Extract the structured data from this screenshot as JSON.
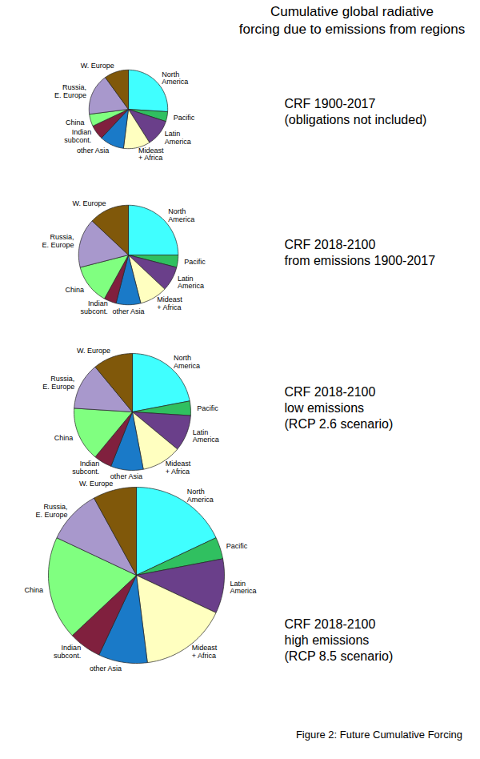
{
  "title": "Cumulative global radiative\nforcing due to emissions from regions",
  "caption": "Figure 2: Future Cumulative Forcing",
  "chart_data": [
    {
      "type": "pie",
      "title": "CRF 1900-2017\n(obligations not included)",
      "categories": [
        "North\nAmerica",
        "Pacific",
        "Latin\nAmerica",
        "Mideast\n+ Africa",
        "other Asia",
        "Indian\nsubcont.",
        "China",
        "Russia,\nE. Europe",
        "W. Europe"
      ],
      "values": [
        26,
        4,
        11,
        11,
        10,
        6,
        5,
        17,
        10
      ],
      "colors": [
        "#40ffff",
        "#30c060",
        "#6a3f8a",
        "#ffffc0",
        "#1a7ac8",
        "#80203e",
        "#80ff80",
        "#a898cc",
        "#80580a"
      ]
    },
    {
      "type": "pie",
      "title": "CRF 2018-2100\nfrom emissions 1900-2017",
      "categories": [
        "North\nAmerica",
        "Pacific",
        "Latin\nAmerica",
        "Mideast\n+ Africa",
        "other Asia",
        "Indian\nsubcont.",
        "China",
        "Russia,\nE. Europe",
        "W. Europe"
      ],
      "values": [
        40,
        6.4,
        12.8,
        14.4,
        12.8,
        6.4,
        20.8,
        25.6,
        20.8
      ],
      "colors": [
        "#40ffff",
        "#30c060",
        "#6a3f8a",
        "#ffffc0",
        "#1a7ac8",
        "#80203e",
        "#80ff80",
        "#a898cc",
        "#80580a"
      ]
    },
    {
      "type": "pie",
      "title": "CRF 2018-2100\nlow emissions\n(RCP 2.6 scenario)",
      "categories": [
        "North\nAmerica",
        "Pacific",
        "Latin\nAmerica",
        "Mideast\n+ Africa",
        "other Asia",
        "Indian\nsubcont.",
        "China",
        "Russia,\nE. Europe",
        "W. Europe"
      ],
      "values": [
        48.4,
        8.8,
        22,
        24.2,
        19.8,
        11,
        33,
        28.6,
        24.2
      ],
      "colors": [
        "#40ffff",
        "#30c060",
        "#6a3f8a",
        "#ffffc0",
        "#1a7ac8",
        "#80203e",
        "#80ff80",
        "#a898cc",
        "#80580a"
      ]
    },
    {
      "type": "pie",
      "title": "CRF 2018-2100\nhigh emissions\n(RCP 8.5 scenario)",
      "categories": [
        "North\nAmerica",
        "Pacific",
        "Latin\nAmerica",
        "Mideast\n+ Africa",
        "other Asia",
        "Indian\nsubcont.",
        "China",
        "Russia,\nE. Europe",
        "W. Europe"
      ],
      "values": [
        90,
        20,
        50,
        80,
        45,
        30,
        95,
        50,
        40
      ],
      "colors": [
        "#40ffff",
        "#30c060",
        "#6a3f8a",
        "#ffffc0",
        "#1a7ac8",
        "#80203e",
        "#80ff80",
        "#a898cc",
        "#80580a"
      ]
    }
  ]
}
